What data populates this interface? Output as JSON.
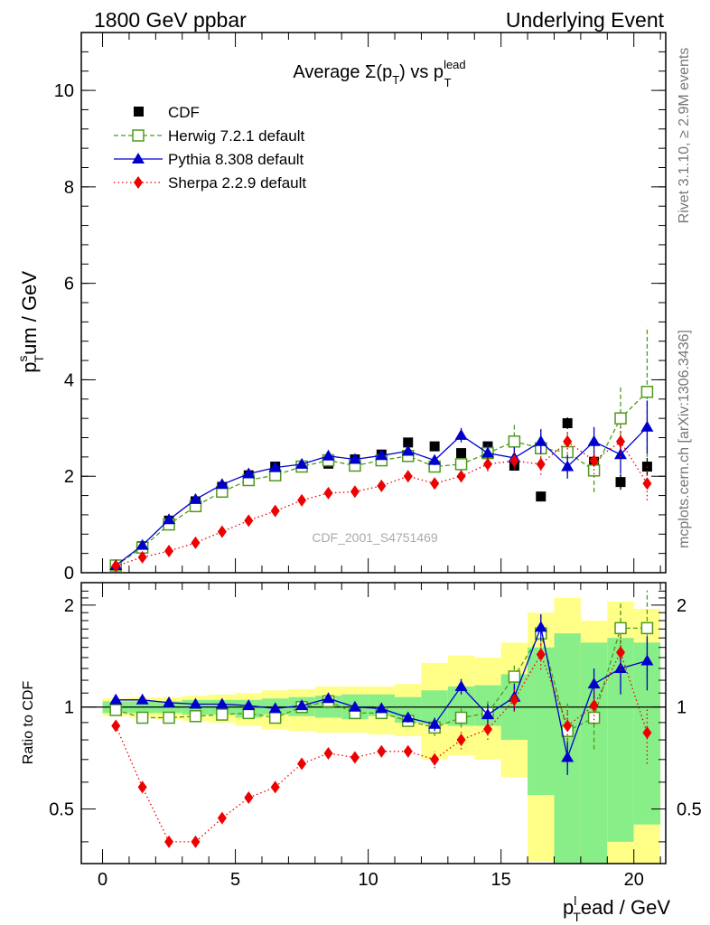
{
  "header": {
    "left": "1800 GeV ppbar",
    "right": "Underlying Event"
  },
  "side_labels": {
    "rivet": "Rivet 3.1.10, ≥ 2.9M events",
    "mcplots": "mcplots.cern.ch [arXiv:1306.3436]"
  },
  "watermark": "CDF_2001_S4751469",
  "chart_data": [
    {
      "type": "scatter",
      "title_main": "Average Σ(p",
      "title_sub": "T",
      "title_mid": ") vs p",
      "title_sup": "lead",
      "title_sub2": "T",
      "ylabel_main": "p",
      "ylabel_sup": "s",
      "ylabel_sub": "T",
      "ylabel_rest": "um / GeV",
      "xlim": [
        -0.8,
        21.2
      ],
      "ylim": [
        0,
        11.2
      ],
      "yticks": [
        0,
        2,
        4,
        6,
        8,
        10
      ],
      "ytick_labels": [
        "0",
        "2",
        "4",
        "6",
        "8",
        "10"
      ],
      "legend_position": "top-left",
      "x": [
        0.5,
        1.5,
        2.5,
        3.5,
        4.5,
        5.5,
        6.5,
        7.5,
        8.5,
        9.5,
        10.5,
        11.5,
        12.5,
        13.5,
        14.5,
        15.5,
        16.5,
        17.5,
        18.5,
        19.5,
        20.5
      ],
      "series": [
        {
          "name": "CDF",
          "color": "#000000",
          "marker": "square-filled",
          "line": "none",
          "values": [
            0.15,
            0.55,
            1.08,
            1.48,
            1.78,
            2.02,
            2.2,
            2.22,
            2.26,
            2.35,
            2.45,
            2.7,
            2.62,
            2.48,
            2.62,
            2.22,
            1.58,
            3.1,
            2.3,
            1.88,
            2.2
          ],
          "errors": [
            0.01,
            0.02,
            0.02,
            0.02,
            0.03,
            0.03,
            0.03,
            0.03,
            0.04,
            0.04,
            0.05,
            0.05,
            0.06,
            0.07,
            0.08,
            0.09,
            0.1,
            0.12,
            0.14,
            0.16,
            0.18
          ]
        },
        {
          "name": "Herwig 7.2.1 default",
          "color": "#4d9a1a",
          "marker": "square-open",
          "line": "dashed",
          "values": [
            0.15,
            0.52,
            1.0,
            1.38,
            1.68,
            1.92,
            2.02,
            2.2,
            2.33,
            2.22,
            2.33,
            2.42,
            2.2,
            2.25,
            2.48,
            2.72,
            2.58,
            2.5,
            2.12,
            3.2,
            3.75
          ],
          "errors": [
            0.01,
            0.02,
            0.03,
            0.03,
            0.04,
            0.04,
            0.05,
            0.05,
            0.06,
            0.07,
            0.08,
            0.09,
            0.12,
            0.15,
            0.22,
            0.35,
            0.4,
            0.45,
            0.45,
            0.65,
            1.35
          ]
        },
        {
          "name": "Pythia 8.308 default",
          "color": "#0000cc",
          "marker": "triangle-filled",
          "line": "solid",
          "values": [
            0.15,
            0.57,
            1.1,
            1.52,
            1.83,
            2.05,
            2.18,
            2.25,
            2.42,
            2.35,
            2.43,
            2.52,
            2.33,
            2.85,
            2.48,
            2.38,
            2.72,
            2.2,
            2.72,
            2.45,
            3.02
          ],
          "errors": [
            0.01,
            0.02,
            0.03,
            0.03,
            0.04,
            0.04,
            0.05,
            0.05,
            0.06,
            0.07,
            0.08,
            0.09,
            0.1,
            0.15,
            0.18,
            0.22,
            0.25,
            0.25,
            0.3,
            0.4,
            0.55
          ]
        },
        {
          "name": "Sherpa 2.2.9 default",
          "color": "#ee0000",
          "marker": "diamond-filled",
          "line": "dotted",
          "values": [
            0.14,
            0.32,
            0.45,
            0.62,
            0.85,
            1.08,
            1.28,
            1.5,
            1.65,
            1.68,
            1.8,
            2.0,
            1.85,
            2.0,
            2.25,
            2.32,
            2.25,
            2.72,
            2.32,
            2.72,
            1.85
          ],
          "errors": [
            0.01,
            0.01,
            0.02,
            0.02,
            0.03,
            0.03,
            0.03,
            0.04,
            0.05,
            0.05,
            0.06,
            0.08,
            0.1,
            0.12,
            0.15,
            0.18,
            0.22,
            0.25,
            0.28,
            0.32,
            0.35
          ]
        }
      ]
    },
    {
      "type": "scatter",
      "ylabel": "Ratio to CDF",
      "xlabel_main": "p",
      "xlabel_sup": "l",
      "xlabel_sub": "T",
      "xlabel_rest": "ead / GeV",
      "xlim": [
        -0.8,
        21.2
      ],
      "ylim": [
        0.345,
        2.33
      ],
      "log_y": true,
      "reference_line": 1,
      "yticks": [
        0.5,
        1,
        2
      ],
      "ytick_labels": [
        "0.5",
        "1",
        "2"
      ],
      "xticks": [
        0,
        5,
        10,
        15,
        20
      ],
      "xtick_labels": [
        "0",
        "5",
        "10",
        "15",
        "20"
      ],
      "bands": {
        "x_edges": [
          0,
          1,
          2,
          3,
          4,
          5,
          6,
          7,
          8,
          9,
          10,
          11,
          12,
          13,
          14,
          15,
          16,
          17,
          18,
          19,
          20,
          21
        ],
        "green_low": [
          0.96,
          0.96,
          0.96,
          0.95,
          0.95,
          0.93,
          0.95,
          0.94,
          0.93,
          0.92,
          0.94,
          0.9,
          0.89,
          0.88,
          0.88,
          0.8,
          0.55,
          0.3,
          0.3,
          0.4,
          0.45
        ],
        "green_high": [
          1.04,
          1.04,
          1.04,
          1.05,
          1.05,
          1.05,
          1.06,
          1.07,
          1.08,
          1.09,
          1.09,
          1.07,
          1.12,
          1.15,
          1.16,
          1.25,
          1.5,
          1.65,
          1.55,
          1.6,
          1.55
        ],
        "yellow_low": [
          0.94,
          0.93,
          0.92,
          0.91,
          0.9,
          0.88,
          0.86,
          0.85,
          0.84,
          0.84,
          0.83,
          0.82,
          0.7,
          0.72,
          0.7,
          0.62,
          0.35,
          0.3,
          0.3,
          0.3,
          0.3
        ],
        "yellow_high": [
          1.06,
          1.07,
          1.07,
          1.08,
          1.09,
          1.1,
          1.12,
          1.13,
          1.15,
          1.15,
          1.15,
          1.17,
          1.35,
          1.42,
          1.4,
          1.55,
          1.9,
          2.1,
          1.8,
          2.05,
          1.95
        ]
      },
      "x": [
        0.5,
        1.5,
        2.5,
        3.5,
        4.5,
        5.5,
        6.5,
        7.5,
        8.5,
        9.5,
        10.5,
        11.5,
        12.5,
        13.5,
        14.5,
        15.5,
        16.5,
        17.5,
        18.5,
        19.5,
        20.5
      ],
      "series": [
        {
          "name": "Herwig 7.2.1 default",
          "color": "#4d9a1a",
          "marker": "square-open",
          "line": "dashed",
          "values": [
            0.98,
            0.93,
            0.93,
            0.94,
            0.95,
            0.96,
            0.93,
            1.0,
            1.04,
            0.96,
            0.96,
            0.91,
            0.87,
            0.93,
            0.96,
            1.23,
            1.65,
            0.85,
            0.93,
            1.71,
            1.71
          ],
          "errors": [
            0.01,
            0.01,
            0.01,
            0.01,
            0.01,
            0.01,
            0.02,
            0.02,
            0.02,
            0.02,
            0.03,
            0.03,
            0.05,
            0.06,
            0.08,
            0.12,
            0.22,
            0.18,
            0.18,
            0.32,
            0.5
          ]
        },
        {
          "name": "Pythia 8.308 default",
          "color": "#0000cc",
          "marker": "triangle-filled",
          "line": "solid",
          "values": [
            1.05,
            1.05,
            1.03,
            1.02,
            1.02,
            1.01,
            0.99,
            1.01,
            1.06,
            1.0,
            0.99,
            0.93,
            0.89,
            1.15,
            0.95,
            1.07,
            1.72,
            0.71,
            1.17,
            1.3,
            1.37
          ],
          "errors": [
            0.01,
            0.01,
            0.01,
            0.01,
            0.01,
            0.02,
            0.02,
            0.02,
            0.02,
            0.02,
            0.03,
            0.03,
            0.04,
            0.06,
            0.07,
            0.1,
            0.16,
            0.08,
            0.13,
            0.21,
            0.25
          ]
        },
        {
          "name": "Sherpa 2.2.9 default",
          "color": "#ee0000",
          "marker": "diamond-filled",
          "line": "dotted",
          "values": [
            0.88,
            0.58,
            0.4,
            0.4,
            0.47,
            0.54,
            0.58,
            0.68,
            0.73,
            0.71,
            0.74,
            0.74,
            0.7,
            0.8,
            0.86,
            1.05,
            1.43,
            0.88,
            1.01,
            1.45,
            0.84
          ],
          "errors": [
            0.01,
            0.01,
            0.01,
            0.01,
            0.01,
            0.01,
            0.02,
            0.02,
            0.02,
            0.02,
            0.03,
            0.03,
            0.04,
            0.05,
            0.06,
            0.08,
            0.14,
            0.1,
            0.12,
            0.17,
            0.16
          ]
        }
      ]
    }
  ]
}
